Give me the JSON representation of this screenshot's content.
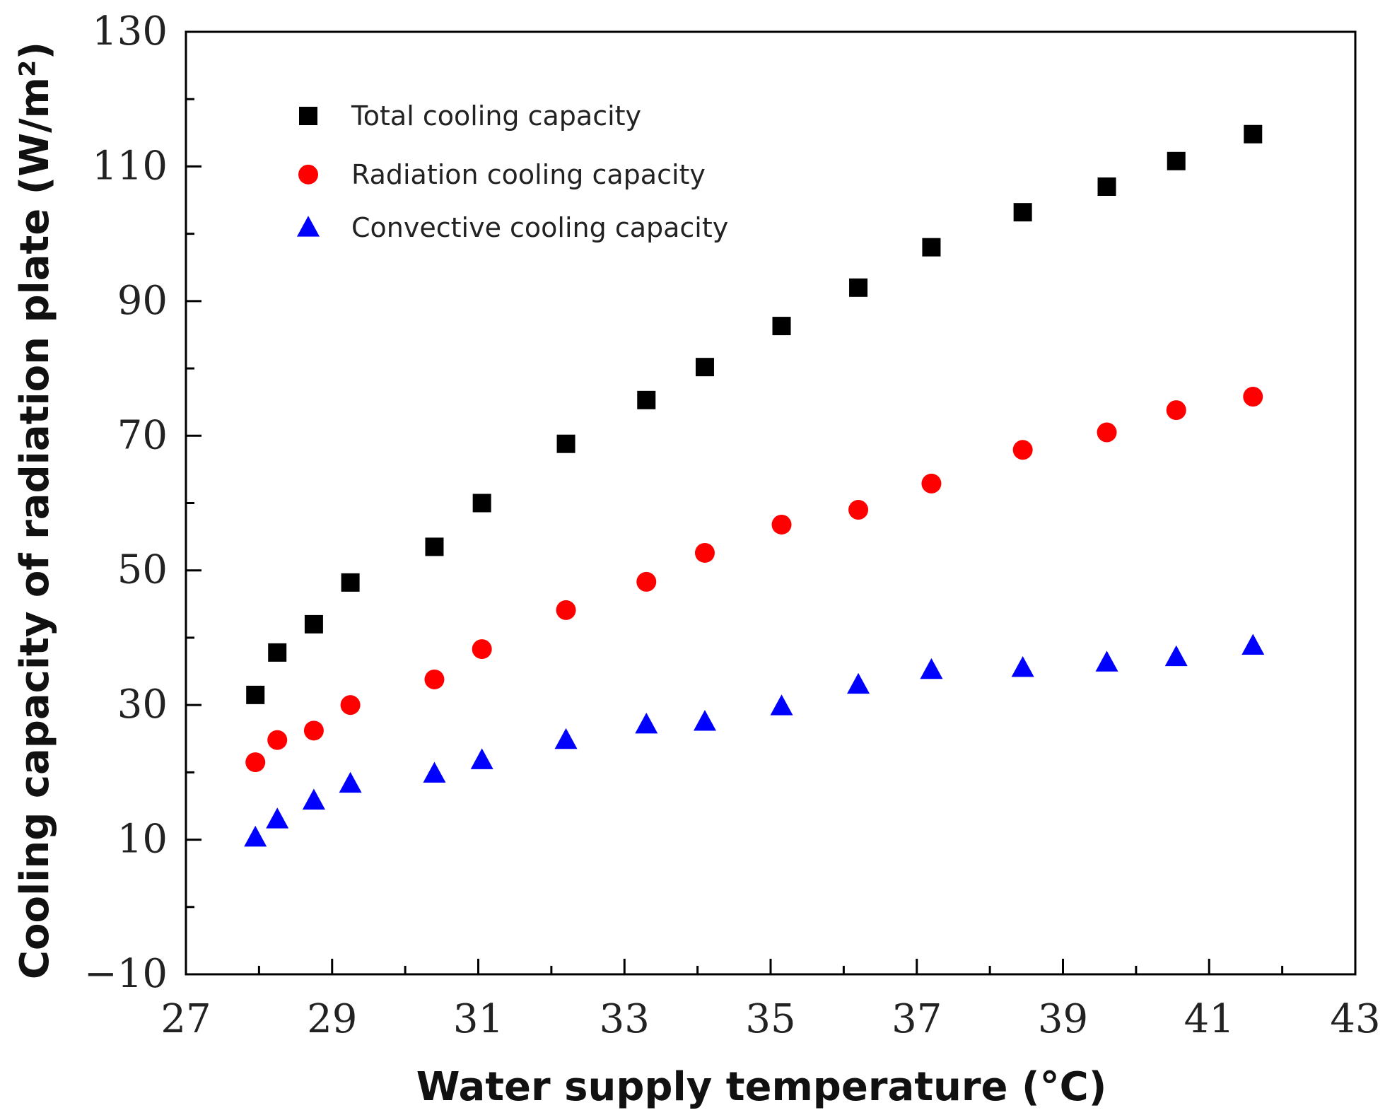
{
  "chart_data": {
    "type": "scatter",
    "title": "",
    "xlabel": "Water supply temperature (°C)",
    "ylabel": "Cooling capacity of radiation plate (W/m²)",
    "xlim": [
      27,
      43
    ],
    "ylim": [
      -10,
      130
    ],
    "xticks": [
      27,
      29,
      31,
      33,
      35,
      37,
      39,
      41,
      43
    ],
    "xtick_labels": [
      "27",
      "29",
      "31",
      "33",
      "35",
      "37",
      "39",
      "41",
      "43"
    ],
    "yticks": [
      -10,
      10,
      30,
      50,
      70,
      90,
      110,
      130
    ],
    "ytick_labels": [
      "−10",
      "10",
      "30",
      "50",
      "70",
      "90",
      "110",
      "130"
    ],
    "grid": false,
    "legend_position": "top-left",
    "x": [
      27.95,
      28.25,
      28.75,
      29.25,
      30.4,
      31.05,
      32.2,
      33.3,
      34.1,
      35.15,
      36.2,
      37.2,
      38.45,
      39.6,
      40.55,
      41.6
    ],
    "series": [
      {
        "name": "Total cooling capacity",
        "marker": "square",
        "color": "#000000",
        "values": [
          31.5,
          37.8,
          42.0,
          48.2,
          53.5,
          60.0,
          68.8,
          75.3,
          80.2,
          86.3,
          92.0,
          98.0,
          103.2,
          107.0,
          110.8,
          114.8
        ]
      },
      {
        "name": "Radiation cooling capacity",
        "marker": "circle",
        "color": "#ff0000",
        "values": [
          21.5,
          24.8,
          26.2,
          30.0,
          33.8,
          38.3,
          44.1,
          48.3,
          52.6,
          56.8,
          59.0,
          62.9,
          67.9,
          70.5,
          73.8,
          75.8
        ]
      },
      {
        "name": "Convective cooling capacity",
        "marker": "triangle",
        "color": "#0000ff",
        "values": [
          10.3,
          13.0,
          15.8,
          18.3,
          19.8,
          21.8,
          24.8,
          27.1,
          27.5,
          29.8,
          33.0,
          35.2,
          35.5,
          36.3,
          37.1,
          38.8
        ]
      }
    ]
  }
}
